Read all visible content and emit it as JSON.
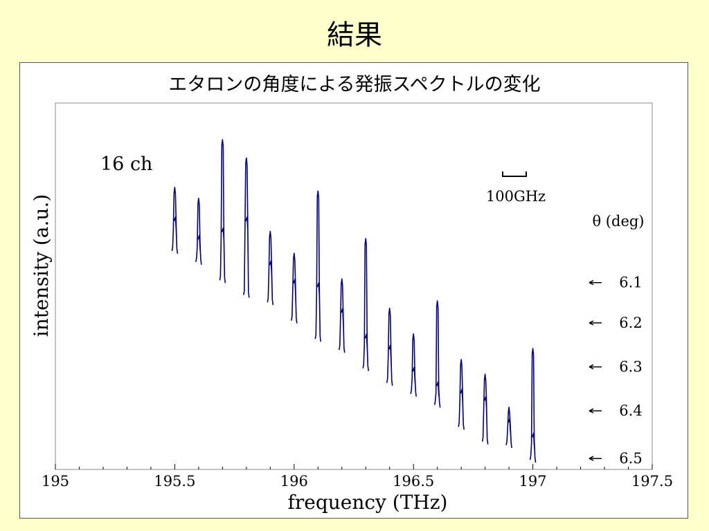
{
  "slide": {
    "title": "結果"
  },
  "chart_data": {
    "type": "line",
    "title": "エタロンの角度による発振スペクトルの変化",
    "xlabel": "frequency (THz)",
    "ylabel": "intensity (a.u.)",
    "xlim": [
      195,
      197.5
    ],
    "x_ticks": [
      "195",
      "195.5",
      "196",
      "196.5",
      "197",
      "197.5"
    ],
    "x_tick_values": [
      195,
      195.5,
      196,
      196.5,
      197,
      197.5
    ],
    "y_ticks_shown": false,
    "grid": false,
    "series_color": "#000080",
    "annotations": {
      "channel_count": "16 ch",
      "scale_bar_label": "100GHz",
      "scale_bar_width_ghz": 100,
      "angle_header": "θ (deg)"
    },
    "angles": [
      {
        "label": "6.1",
        "level": 0.51
      },
      {
        "label": "6.2",
        "level": 0.4
      },
      {
        "label": "6.3",
        "level": 0.28
      },
      {
        "label": "6.4",
        "level": 0.16
      },
      {
        "label": "6.5",
        "level": 0.03
      }
    ],
    "peaks": [
      {
        "f": 195.5,
        "top": 0.77,
        "base": 0.6,
        "mid": 0.67
      },
      {
        "f": 195.6,
        "top": 0.74,
        "base": 0.57,
        "mid": 0.62
      },
      {
        "f": 195.7,
        "top": 0.9,
        "base": 0.52,
        "mid": 0.64
      },
      {
        "f": 195.8,
        "top": 0.85,
        "base": 0.48,
        "mid": 0.67
      },
      {
        "f": 195.9,
        "top": 0.65,
        "base": 0.46,
        "mid": 0.55
      },
      {
        "f": 196.0,
        "top": 0.59,
        "base": 0.41,
        "mid": 0.5
      },
      {
        "f": 196.1,
        "top": 0.76,
        "base": 0.36,
        "mid": 0.49
      },
      {
        "f": 196.2,
        "top": 0.52,
        "base": 0.33,
        "mid": 0.42
      },
      {
        "f": 196.3,
        "top": 0.63,
        "base": 0.28,
        "mid": 0.35
      },
      {
        "f": 196.4,
        "top": 0.44,
        "base": 0.24,
        "mid": 0.32
      },
      {
        "f": 196.5,
        "top": 0.37,
        "base": 0.21,
        "mid": 0.26
      },
      {
        "f": 196.6,
        "top": 0.46,
        "base": 0.18,
        "mid": 0.22
      },
      {
        "f": 196.7,
        "top": 0.3,
        "base": 0.12,
        "mid": 0.2
      },
      {
        "f": 196.8,
        "top": 0.26,
        "base": 0.08,
        "mid": 0.18
      },
      {
        "f": 196.9,
        "top": 0.17,
        "base": 0.07,
        "mid": 0.12
      },
      {
        "f": 197.0,
        "top": 0.33,
        "base": 0.03,
        "mid": 0.08
      }
    ]
  }
}
